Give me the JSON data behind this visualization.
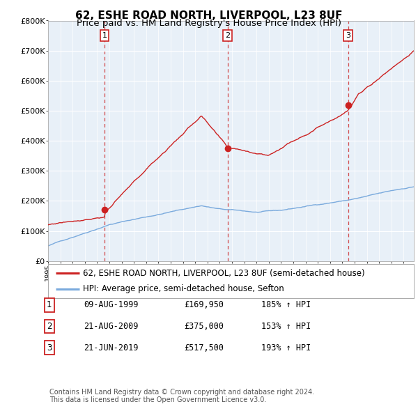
{
  "title": "62, ESHE ROAD NORTH, LIVERPOOL, L23 8UF",
  "subtitle": "Price paid vs. HM Land Registry's House Price Index (HPI)",
  "ylim": [
    0,
    800000
  ],
  "xlim_start": 1995.0,
  "xlim_end": 2024.83,
  "sale_dates": [
    1999.608,
    2009.638,
    2019.472
  ],
  "sale_prices": [
    169950,
    375000,
    517500
  ],
  "sale_labels": [
    "1",
    "2",
    "3"
  ],
  "legend_entries": [
    "62, ESHE ROAD NORTH, LIVERPOOL, L23 8UF (semi-detached house)",
    "HPI: Average price, semi-detached house, Sefton"
  ],
  "table_rows": [
    [
      "1",
      "09-AUG-1999",
      "£169,950",
      "185% ↑ HPI"
    ],
    [
      "2",
      "21-AUG-2009",
      "£375,000",
      "153% ↑ HPI"
    ],
    [
      "3",
      "21-JUN-2019",
      "£517,500",
      "193% ↑ HPI"
    ]
  ],
  "footer": "Contains HM Land Registry data © Crown copyright and database right 2024.\nThis data is licensed under the Open Government Licence v3.0.",
  "hpi_color": "#7aaadd",
  "price_color": "#cc2222",
  "vline_color": "#cc2222",
  "bg_color": "#ffffff",
  "plot_bg_color": "#e8f0f8",
  "grid_color": "#ffffff",
  "title_fontsize": 11,
  "subtitle_fontsize": 9.5,
  "tick_fontsize": 8,
  "legend_fontsize": 8.5
}
